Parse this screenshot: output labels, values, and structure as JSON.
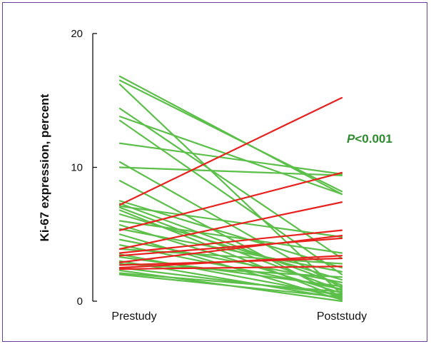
{
  "chart_data": {
    "type": "line",
    "categories": [
      "Prestudy",
      "Poststudy"
    ],
    "ylabel": "Ki-67 expression, percent",
    "ylim": [
      0,
      20
    ],
    "yticks": [
      0,
      10,
      20
    ],
    "annotation": "P<0.001",
    "colors": {
      "decrease": "#5cbf4a",
      "increase": "#e8211f",
      "axis": "#111111",
      "annotation": "#2e8b2e"
    },
    "series": [
      {
        "group": "decrease",
        "values": [
          16.8,
          8.0
        ]
      },
      {
        "group": "decrease",
        "values": [
          16.5,
          8.2
        ]
      },
      {
        "group": "decrease",
        "values": [
          16.2,
          0.5
        ]
      },
      {
        "group": "decrease",
        "values": [
          14.4,
          3.2
        ]
      },
      {
        "group": "decrease",
        "values": [
          13.8,
          8.0
        ]
      },
      {
        "group": "decrease",
        "values": [
          13.5,
          2.0
        ]
      },
      {
        "group": "decrease",
        "values": [
          11.8,
          9.5
        ]
      },
      {
        "group": "decrease",
        "values": [
          10.4,
          1.0
        ]
      },
      {
        "group": "decrease",
        "values": [
          10.0,
          9.4
        ]
      },
      {
        "group": "decrease",
        "values": [
          9.0,
          0.3
        ]
      },
      {
        "group": "decrease",
        "values": [
          7.5,
          2.5
        ]
      },
      {
        "group": "decrease",
        "values": [
          7.3,
          1.2
        ]
      },
      {
        "group": "decrease",
        "values": [
          7.1,
          4.8
        ]
      },
      {
        "group": "decrease",
        "values": [
          7.0,
          0.8
        ]
      },
      {
        "group": "decrease",
        "values": [
          6.8,
          0.2
        ]
      },
      {
        "group": "decrease",
        "values": [
          6.5,
          1.6
        ]
      },
      {
        "group": "decrease",
        "values": [
          6.0,
          3.6
        ]
      },
      {
        "group": "decrease",
        "values": [
          5.7,
          0.6
        ]
      },
      {
        "group": "decrease",
        "values": [
          5.4,
          2.2
        ]
      },
      {
        "group": "decrease",
        "values": [
          5.0,
          0.1
        ]
      },
      {
        "group": "decrease",
        "values": [
          4.6,
          1.4
        ]
      },
      {
        "group": "decrease",
        "values": [
          4.2,
          0.9
        ]
      },
      {
        "group": "decrease",
        "values": [
          3.9,
          2.8
        ]
      },
      {
        "group": "decrease",
        "values": [
          3.5,
          0.4
        ]
      },
      {
        "group": "decrease",
        "values": [
          3.3,
          1.1
        ]
      },
      {
        "group": "decrease",
        "values": [
          3.0,
          0.2
        ]
      },
      {
        "group": "decrease",
        "values": [
          2.8,
          1.8
        ]
      },
      {
        "group": "decrease",
        "values": [
          2.5,
          0.5
        ]
      },
      {
        "group": "decrease",
        "values": [
          2.3,
          0.0
        ]
      },
      {
        "group": "decrease",
        "values": [
          2.1,
          0.7
        ]
      },
      {
        "group": "decrease",
        "values": [
          2.0,
          0.3
        ]
      },
      {
        "group": "increase",
        "values": [
          7.2,
          15.2
        ]
      },
      {
        "group": "increase",
        "values": [
          5.3,
          9.6
        ]
      },
      {
        "group": "increase",
        "values": [
          3.9,
          7.4
        ]
      },
      {
        "group": "increase",
        "values": [
          3.6,
          5.3
        ]
      },
      {
        "group": "increase",
        "values": [
          3.4,
          4.7
        ]
      },
      {
        "group": "increase",
        "values": [
          2.9,
          4.9
        ]
      },
      {
        "group": "increase",
        "values": [
          2.7,
          3.2
        ]
      },
      {
        "group": "increase",
        "values": [
          2.5,
          3.4
        ]
      },
      {
        "group": "increase",
        "values": [
          2.4,
          2.6
        ]
      }
    ]
  }
}
